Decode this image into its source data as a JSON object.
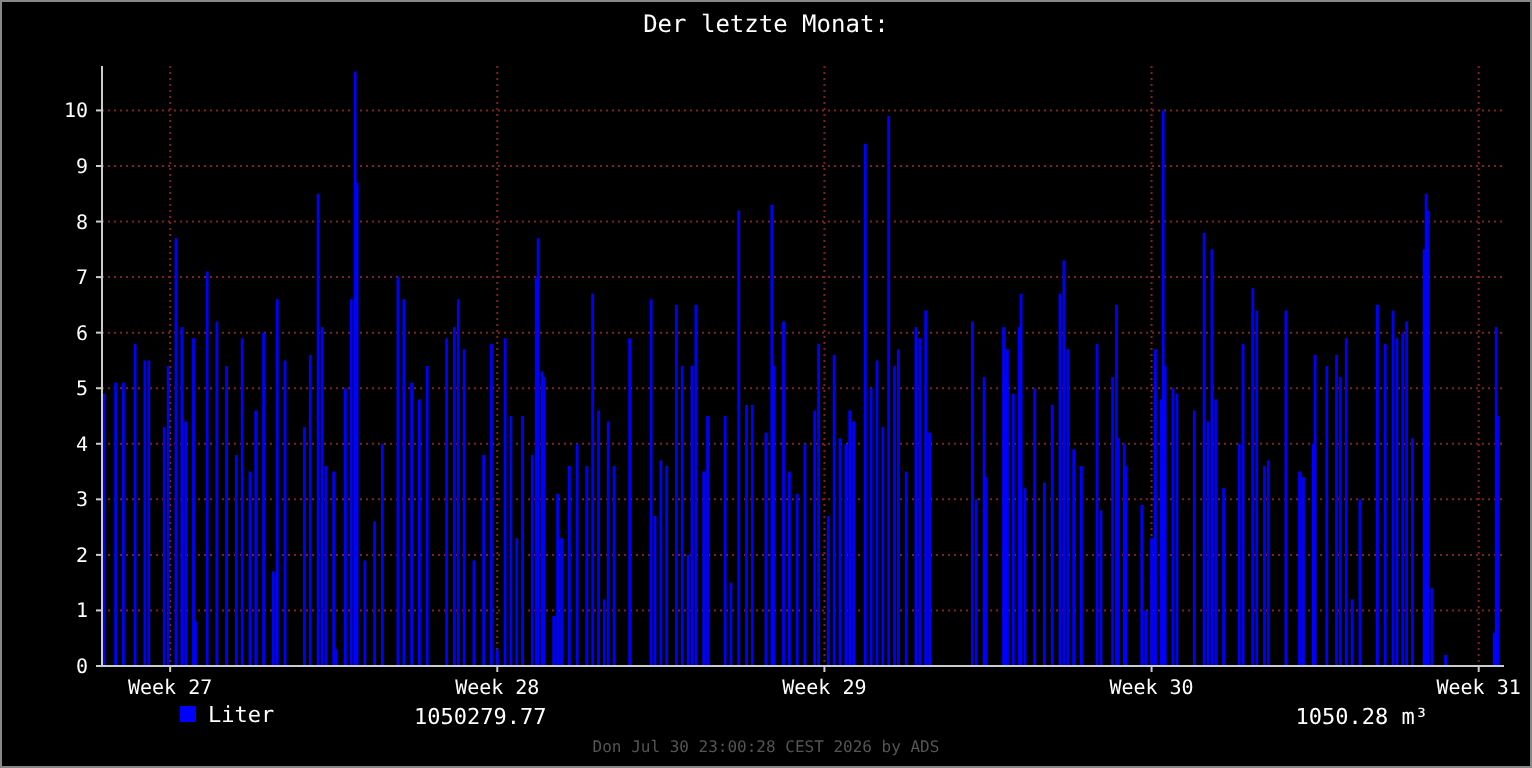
{
  "chart_data": {
    "type": "bar",
    "title": "Der letzte Monat:",
    "x": [
      "2026-07-01T02:00",
      "2026-07-01T08:00",
      "2026-07-01T12:00",
      "2026-07-01T18:00",
      "2026-07-01T23:00",
      "2026-07-02T01:00",
      "2026-07-02T09:00",
      "2026-07-02T11:00",
      "2026-07-02T15:00",
      "2026-07-02T18:00",
      "2026-07-02T20:00",
      "2026-07-03T00:00",
      "2026-07-03T01:00",
      "2026-07-03T07:00",
      "2026-07-03T12:00",
      "2026-07-03T17:00",
      "2026-07-03T22:00",
      "2026-07-04T01:00",
      "2026-07-04T05:00",
      "2026-07-04T08:00",
      "2026-07-04T12:00",
      "2026-07-04T17:00",
      "2026-07-04T19:00",
      "2026-07-04T23:00",
      "2026-07-05T09:00",
      "2026-07-05T12:00",
      "2026-07-05T16:00",
      "2026-07-05T18:00",
      "2026-07-05T20:00",
      "2026-07-06T00:00",
      "2026-07-06T01:00",
      "2026-07-06T06:00",
      "2026-07-06T09:00",
      "2026-07-06T11:00",
      "2026-07-06T12:00",
      "2026-07-06T16:00",
      "2026-07-06T21:00",
      "2026-07-07T01:00",
      "2026-07-07T09:00",
      "2026-07-07T12:00",
      "2026-07-07T16:00",
      "2026-07-07T20:00",
      "2026-07-08T00:00",
      "2026-07-08T10:00",
      "2026-07-08T14:00",
      "2026-07-08T16:00",
      "2026-07-08T19:00",
      "2026-07-09T00:00",
      "2026-07-09T05:00",
      "2026-07-09T09:00",
      "2026-07-09T12:00",
      "2026-07-09T16:00",
      "2026-07-09T19:00",
      "2026-07-09T22:00",
      "2026-07-10T01:00",
      "2026-07-10T06:00",
      "2026-07-10T08:00",
      "2026-07-10T09:00",
      "2026-07-10T11:00",
      "2026-07-10T12:00",
      "2026-07-10T17:00",
      "2026-07-10T19:00",
      "2026-07-10T21:00",
      "2026-07-11T01:00",
      "2026-07-11T05:00",
      "2026-07-11T10:00",
      "2026-07-11T13:00",
      "2026-07-11T16:00",
      "2026-07-11T19:00",
      "2026-07-11T21:00",
      "2026-07-12T00:00",
      "2026-07-12T08:00",
      "2026-07-12T19:00",
      "2026-07-12T21:00",
      "2026-07-13T00:00",
      "2026-07-13T03:00",
      "2026-07-13T08:00",
      "2026-07-13T11:00",
      "2026-07-13T14:00",
      "2026-07-13T16:00",
      "2026-07-13T18:00",
      "2026-07-13T22:00",
      "2026-07-14T00:00",
      "2026-07-14T09:00",
      "2026-07-14T12:00",
      "2026-07-14T16:00",
      "2026-07-14T20:00",
      "2026-07-14T23:00",
      "2026-07-15T06:00",
      "2026-07-15T09:00",
      "2026-07-15T10:00",
      "2026-07-15T15:00",
      "2026-07-15T18:00",
      "2026-07-15T22:00",
      "2026-07-16T02:00",
      "2026-07-16T07:00",
      "2026-07-16T09:00",
      "2026-07-16T14:00",
      "2026-07-16T17:00",
      "2026-07-16T20:00",
      "2026-07-16T23:00",
      "2026-07-17T01:00",
      "2026-07-17T03:00",
      "2026-07-17T09:00",
      "2026-07-17T12:00",
      "2026-07-17T15:00",
      "2026-07-17T18:00",
      "2026-07-17T21:00",
      "2026-07-18T00:00",
      "2026-07-18T02:00",
      "2026-07-18T06:00",
      "2026-07-18T11:00",
      "2026-07-18T13:00",
      "2026-07-18T16:00",
      "2026-07-18T18:00",
      "2026-07-19T16:00",
      "2026-07-19T18:00",
      "2026-07-19T22:00",
      "2026-07-19T23:00",
      "2026-07-20T08:00",
      "2026-07-20T09:00",
      "2026-07-20T10:00",
      "2026-07-20T13:00",
      "2026-07-20T16:00",
      "2026-07-20T17:00",
      "2026-07-20T19:00",
      "2026-07-21T00:00",
      "2026-07-21T05:00",
      "2026-07-21T09:00",
      "2026-07-21T13:00",
      "2026-07-21T15:00",
      "2026-07-21T17:00",
      "2026-07-21T20:00",
      "2026-07-22T00:00",
      "2026-07-22T08:00",
      "2026-07-22T10:00",
      "2026-07-22T16:00",
      "2026-07-22T18:00",
      "2026-07-22T19:00",
      "2026-07-22T22:00",
      "2026-07-22T23:00",
      "2026-07-23T07:00",
      "2026-07-23T09:00",
      "2026-07-23T12:00",
      "2026-07-23T14:00",
      "2026-07-23T17:00",
      "2026-07-23T18:00",
      "2026-07-23T19:00",
      "2026-07-23T23:00",
      "2026-07-24T01:00",
      "2026-07-24T10:00",
      "2026-07-24T15:00",
      "2026-07-24T17:00",
      "2026-07-24T19:00",
      "2026-07-24T21:00",
      "2026-07-25T01:00",
      "2026-07-25T09:00",
      "2026-07-25T11:00",
      "2026-07-25T16:00",
      "2026-07-25T18:00",
      "2026-07-25T22:00",
      "2026-07-26T00:00",
      "2026-07-26T09:00",
      "2026-07-26T16:00",
      "2026-07-26T18:00",
      "2026-07-26T23:00",
      "2026-07-27T00:00",
      "2026-07-27T06:00",
      "2026-07-27T11:00",
      "2026-07-27T13:00",
      "2026-07-27T16:00",
      "2026-07-27T19:00",
      "2026-07-27T23:00",
      "2026-07-28T08:00",
      "2026-07-28T12:00",
      "2026-07-28T16:00",
      "2026-07-28T18:00",
      "2026-07-28T21:00",
      "2026-07-28T23:00",
      "2026-07-29T02:00",
      "2026-07-29T08:00",
      "2026-07-29T09:00",
      "2026-07-29T10:00",
      "2026-07-29T12:00",
      "2026-07-29T19:00",
      "2026-07-30T20:00",
      "2026-07-30T21:00",
      "2026-07-30T22:00"
    ],
    "series": [
      {
        "name": "Liter",
        "color": "#0000ff",
        "values": [
          4.9,
          5.1,
          5.1,
          5.8,
          5.5,
          5.5,
          4.3,
          5.4,
          7.7,
          6.1,
          4.4,
          5.9,
          0.8,
          7.1,
          6.2,
          5.4,
          3.8,
          5.9,
          3.5,
          4.6,
          6.0,
          1.7,
          6.6,
          5.5,
          4.3,
          5.6,
          8.5,
          6.1,
          3.6,
          3.5,
          0.3,
          5.0,
          6.6,
          10.7,
          8.7,
          1.9,
          2.6,
          4.0,
          7.0,
          6.6,
          5.1,
          4.8,
          5.4,
          5.9,
          6.1,
          6.6,
          5.7,
          1.9,
          3.8,
          5.8,
          0.3,
          5.9,
          4.5,
          2.3,
          4.5,
          3.8,
          7.0,
          7.7,
          5.3,
          5.2,
          0.9,
          3.1,
          2.3,
          3.6,
          4.0,
          3.6,
          6.7,
          4.6,
          1.2,
          4.4,
          3.6,
          5.9,
          6.6,
          2.7,
          3.7,
          3.6,
          6.5,
          5.4,
          2.0,
          5.4,
          6.5,
          3.5,
          4.5,
          4.5,
          1.5,
          8.2,
          4.7,
          4.7,
          4.2,
          8.3,
          5.4,
          6.2,
          3.5,
          3.1,
          4.0,
          4.6,
          5.8,
          2.7,
          5.6,
          4.1,
          4.0,
          4.6,
          4.4,
          9.4,
          5.0,
          5.5,
          4.3,
          9.9,
          5.4,
          5.7,
          3.5,
          6.1,
          5.9,
          6.4,
          4.2,
          6.2,
          3.0,
          5.2,
          3.4,
          6.1,
          5.2,
          5.7,
          4.9,
          6.1,
          6.7,
          3.2,
          5.0,
          3.3,
          4.7,
          6.7,
          7.3,
          5.7,
          3.9,
          3.6,
          5.8,
          2.8,
          5.2,
          6.5,
          4.1,
          4.0,
          3.6,
          2.9,
          1.0,
          2.3,
          5.7,
          4.8,
          10.0,
          5.4,
          5.0,
          4.9,
          4.6,
          7.8,
          4.4,
          7.5,
          4.8,
          3.2,
          4.0,
          5.8,
          6.8,
          6.4,
          3.6,
          3.7,
          6.4,
          3.5,
          3.4,
          4.0,
          5.6,
          5.4,
          5.6,
          5.2,
          5.9,
          1.2,
          3.0,
          6.5,
          5.8,
          6.4,
          5.9,
          6.0,
          6.2,
          4.1,
          7.5,
          8.5,
          8.2,
          1.4,
          0.2,
          0.6,
          6.1,
          4.5
        ]
      }
    ],
    "xlim": [
      "2026-07-01T01:00",
      "2026-07-31T01:00"
    ],
    "xticks": [
      {
        "value": "2026-07-02T12:00",
        "label": "Week 27"
      },
      {
        "value": "2026-07-09T12:00",
        "label": "Week 28"
      },
      {
        "value": "2026-07-16T12:00",
        "label": "Week 29"
      },
      {
        "value": "2026-07-23T12:00",
        "label": "Week 30"
      },
      {
        "value": "2026-07-30T12:00",
        "label": "Week 31"
      }
    ],
    "ylim": [
      0,
      10.8
    ],
    "yticks": [
      0,
      1,
      2,
      3,
      4,
      5,
      6,
      7,
      8,
      9,
      10
    ],
    "grid": true,
    "legend": "bottom",
    "annotations": [
      "1050279.77",
      "1050.28 m³",
      "Don Jul 30 23:00:28 CEST 2026 by ADS"
    ]
  }
}
